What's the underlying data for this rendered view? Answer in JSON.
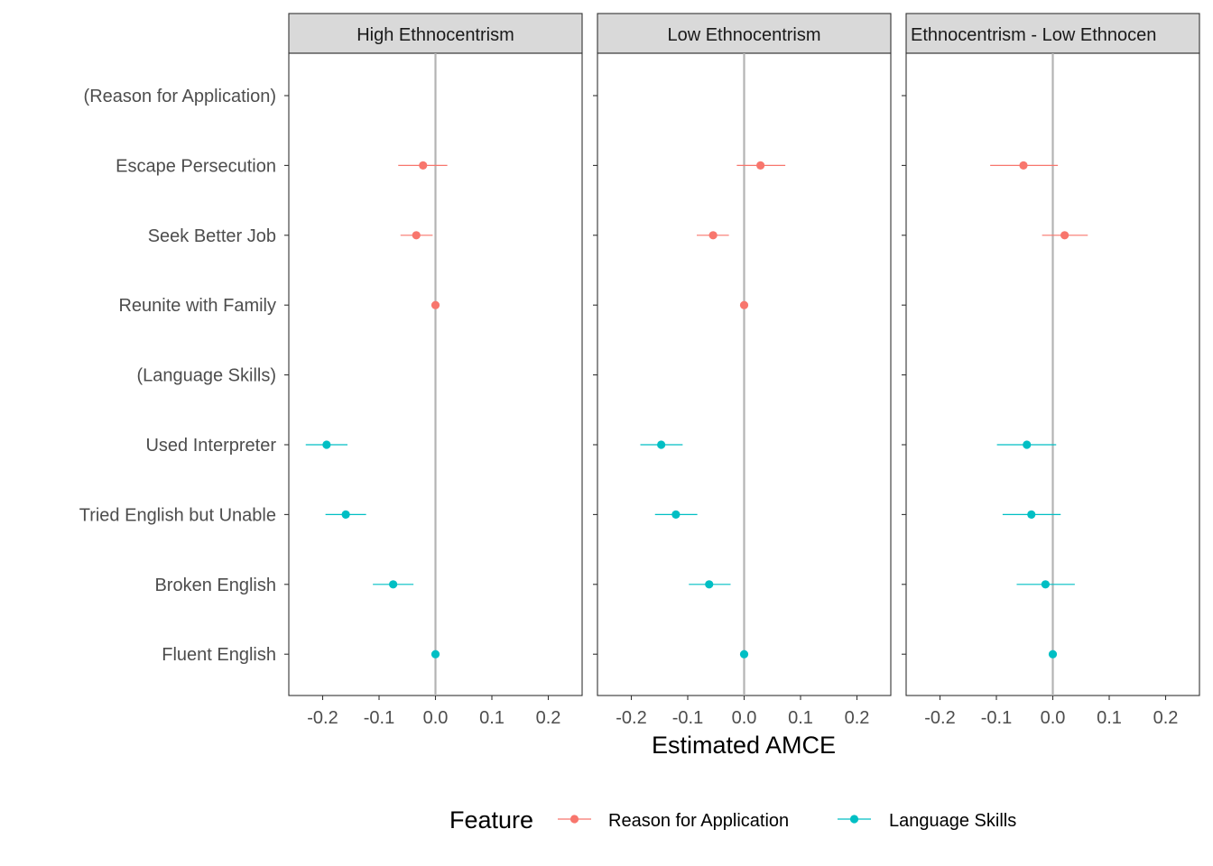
{
  "chart_data": {
    "type": "scatter",
    "subtype": "coefficient-plot-faceted",
    "xlabel": "Estimated AMCE",
    "xlim": [
      -0.26,
      0.26
    ],
    "xticks": [
      -0.2,
      -0.1,
      0.0,
      0.1,
      0.2
    ],
    "xtick_labels": [
      "-0.2",
      "-0.1",
      "0.0",
      "0.1",
      "0.2"
    ],
    "reference_line": 0.0,
    "grid": false,
    "legend_position": "bottom",
    "legend_title": "Feature",
    "groups": [
      {
        "name": "Reason for Application",
        "color": "#F8766D"
      },
      {
        "name": "Language Skills",
        "color": "#00BFC4"
      }
    ],
    "categories": [
      "(Reason for Application)",
      "Escape Persecution",
      "Seek Better Job",
      "Reunite with Family",
      "(Language Skills)",
      "Used Interpreter",
      "Tried English but Unable",
      "Broken English",
      "Fluent English"
    ],
    "facets": [
      {
        "title": "High Ethnocentrism",
        "points": [
          {
            "label": "Escape Persecution",
            "group": "Reason for Application",
            "estimate": -0.022,
            "lower": -0.066,
            "upper": 0.021
          },
          {
            "label": "Seek Better Job",
            "group": "Reason for Application",
            "estimate": -0.034,
            "lower": -0.062,
            "upper": -0.005
          },
          {
            "label": "Reunite with Family",
            "group": "Reason for Application",
            "estimate": 0.0,
            "lower": 0.0,
            "upper": 0.0
          },
          {
            "label": "Used Interpreter",
            "group": "Language Skills",
            "estimate": -0.193,
            "lower": -0.23,
            "upper": -0.156
          },
          {
            "label": "Tried English but Unable",
            "group": "Language Skills",
            "estimate": -0.159,
            "lower": -0.195,
            "upper": -0.123
          },
          {
            "label": "Broken English",
            "group": "Language Skills",
            "estimate": -0.075,
            "lower": -0.111,
            "upper": -0.039
          },
          {
            "label": "Fluent English",
            "group": "Language Skills",
            "estimate": 0.0,
            "lower": 0.0,
            "upper": 0.0
          }
        ]
      },
      {
        "title": "Low Ethnocentrism",
        "points": [
          {
            "label": "Escape Persecution",
            "group": "Reason for Application",
            "estimate": 0.029,
            "lower": -0.013,
            "upper": 0.073
          },
          {
            "label": "Seek Better Job",
            "group": "Reason for Application",
            "estimate": -0.055,
            "lower": -0.084,
            "upper": -0.027
          },
          {
            "label": "Reunite with Family",
            "group": "Reason for Application",
            "estimate": 0.0,
            "lower": 0.0,
            "upper": 0.0
          },
          {
            "label": "Used Interpreter",
            "group": "Language Skills",
            "estimate": -0.147,
            "lower": -0.184,
            "upper": -0.109
          },
          {
            "label": "Tried English but Unable",
            "group": "Language Skills",
            "estimate": -0.121,
            "lower": -0.158,
            "upper": -0.083
          },
          {
            "label": "Broken English",
            "group": "Language Skills",
            "estimate": -0.062,
            "lower": -0.098,
            "upper": -0.024
          },
          {
            "label": "Fluent English",
            "group": "Language Skills",
            "estimate": 0.0,
            "lower": 0.0,
            "upper": 0.0
          }
        ]
      },
      {
        "title": "Ethnocentrism - Low Ethnocen",
        "points": [
          {
            "label": "Escape Persecution",
            "group": "Reason for Application",
            "estimate": -0.052,
            "lower": -0.111,
            "upper": 0.009
          },
          {
            "label": "Seek Better Job",
            "group": "Reason for Application",
            "estimate": 0.021,
            "lower": -0.019,
            "upper": 0.062
          },
          {
            "label": "Used Interpreter",
            "group": "Language Skills",
            "estimate": -0.046,
            "lower": -0.099,
            "upper": 0.006
          },
          {
            "label": "Tried English but Unable",
            "group": "Language Skills",
            "estimate": -0.038,
            "lower": -0.089,
            "upper": 0.014
          },
          {
            "label": "Broken English",
            "group": "Language Skills",
            "estimate": -0.013,
            "lower": -0.064,
            "upper": 0.039
          },
          {
            "label": "Fluent English",
            "group": "Language Skills",
            "estimate": 0.0,
            "lower": 0.0,
            "upper": 0.0
          }
        ]
      }
    ]
  }
}
